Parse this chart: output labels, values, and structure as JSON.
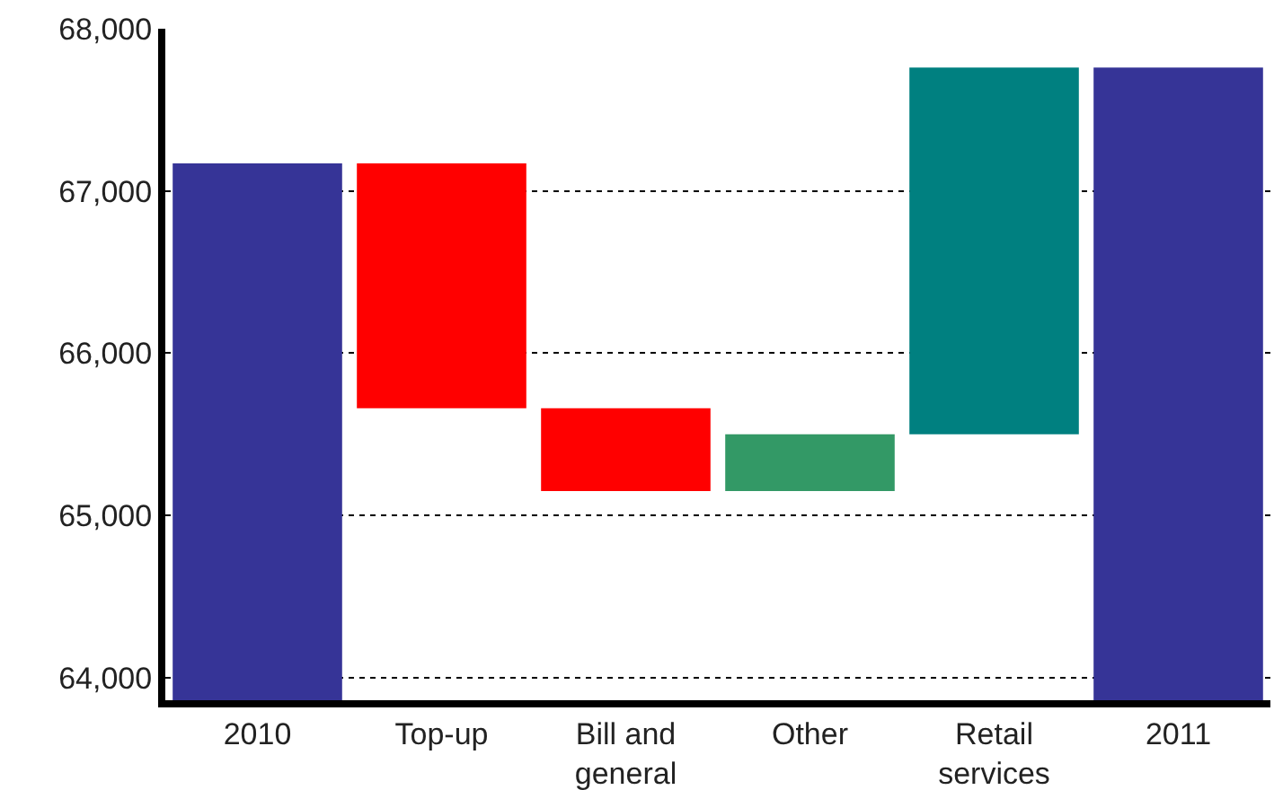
{
  "chart_data": {
    "type": "bar",
    "categories": [
      "2010",
      "Top-up",
      "Bill and general",
      "Other",
      "Retail services",
      "2011"
    ],
    "values": [
      3310,
      1510,
      510,
      350,
      2260,
      3900
    ],
    "base": [
      63860,
      65660,
      65150,
      65150,
      65500,
      63860
    ],
    "colors": [
      "#363497",
      "#ff0000",
      "#ff0000",
      "#339966",
      "#008080",
      "#363497"
    ],
    "ylim": [
      63860,
      68000
    ],
    "yticks": [
      {
        "value": 64000,
        "label": "64,000"
      },
      {
        "value": 65000,
        "label": "65,000"
      },
      {
        "value": 66000,
        "label": "66,000"
      },
      {
        "value": 67000,
        "label": "67,000"
      },
      {
        "value": 68000,
        "label": "68,000"
      }
    ],
    "grid": "y"
  }
}
